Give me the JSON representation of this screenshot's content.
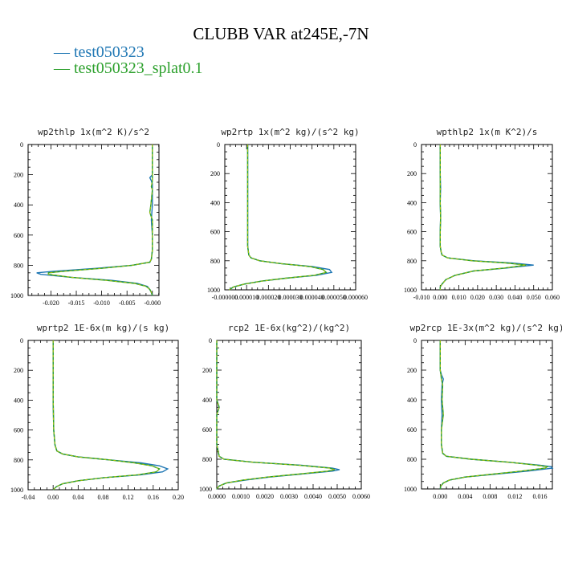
{
  "title": "CLUBB VAR at245E,-7N",
  "legend": [
    {
      "name": "test050323",
      "color": "#1f77b4"
    },
    {
      "name": "test050323_splat0.1",
      "color": "#2ca02c"
    }
  ],
  "chart_data": [
    {
      "type": "line",
      "title": "wp2thlp   1x(m^2 K)/s^2",
      "xlim": [
        -0.0245,
        0.0013
      ],
      "ylim": [
        1000,
        0
      ],
      "xticks": [
        -0.02,
        -0.015,
        -0.01,
        -0.005,
        0.0
      ],
      "xtick_labels": [
        "-0.020",
        "-0.015",
        "-0.010",
        "-0.005",
        "-0.000"
      ],
      "yticks": [
        0,
        200,
        400,
        600,
        800,
        1000
      ],
      "ytick_labels": [
        "0",
        "200",
        "400",
        "600",
        "800",
        "1000"
      ],
      "series": [
        {
          "name": "test050323",
          "y": [
            0,
            200,
            220,
            240,
            260,
            300,
            400,
            500,
            600,
            700,
            760,
            780,
            800,
            820,
            840,
            850,
            860,
            880,
            900,
            920,
            940,
            960,
            980,
            1000
          ],
          "x": [
            0,
            0,
            -0.0005,
            -0.0002,
            0,
            0,
            0,
            -0.0002,
            0,
            0,
            -0.0002,
            -0.0005,
            -0.004,
            -0.011,
            -0.0195,
            -0.0228,
            -0.022,
            -0.016,
            -0.008,
            -0.003,
            -0.001,
            -0.0005,
            -0.0002,
            0
          ]
        },
        {
          "name": "test050323_splat0.1",
          "y": [
            0,
            200,
            240,
            280,
            300,
            400,
            450,
            500,
            600,
            700,
            760,
            780,
            800,
            820,
            840,
            850,
            860,
            880,
            900,
            920,
            940,
            960,
            980,
            1000
          ],
          "x": [
            0,
            0,
            0,
            -0.0002,
            0,
            -0.0003,
            -0.0005,
            0,
            0,
            0,
            -0.0002,
            -0.0005,
            -0.004,
            -0.01,
            -0.0175,
            -0.0205,
            -0.0205,
            -0.016,
            -0.009,
            -0.0035,
            -0.0012,
            -0.0005,
            -0.0002,
            0
          ]
        }
      ]
    },
    {
      "type": "line",
      "title": "wp2rtp   1x(m^2 kg)/(s^2 kg)",
      "xlim": [
        0.0,
        6e-05
      ],
      "ylim": [
        1000,
        0
      ],
      "xticks": [
        0.0,
        1e-05,
        2e-05,
        3e-05,
        4e-05,
        5e-05,
        6e-05
      ],
      "xtick_labels": [
        "-0.000000",
        "0.000010",
        "0.000020",
        "0.000030",
        "0.000040",
        "0.000050",
        "0.000060"
      ],
      "yticks": [
        0,
        200,
        400,
        600,
        800,
        1000
      ],
      "ytick_labels": [
        "0",
        "200",
        "400",
        "600",
        "800",
        "1000"
      ],
      "series": [
        {
          "name": "test050323",
          "y": [
            0,
            200,
            400,
            600,
            700,
            760,
            780,
            800,
            820,
            840,
            860,
            880,
            900,
            920,
            940,
            960,
            980,
            1000
          ],
          "x": [
            1.05e-05,
            1.05e-05,
            1.05e-05,
            1.05e-05,
            1.05e-05,
            1.1e-05,
            1.2e-05,
            1.6e-05,
            2.6e-05,
            4e-05,
            4.8e-05,
            4.9e-05,
            4.2e-05,
            2.8e-05,
            1.7e-05,
            9e-06,
            4e-06,
            2e-06
          ]
        },
        {
          "name": "test050323_splat0.1",
          "y": [
            0,
            200,
            400,
            600,
            700,
            760,
            780,
            800,
            820,
            840,
            860,
            880,
            900,
            920,
            940,
            960,
            980,
            1000
          ],
          "x": [
            1.05e-05,
            1.05e-05,
            1.05e-05,
            1.05e-05,
            1.05e-05,
            1.1e-05,
            1.2e-05,
            1.6e-05,
            2.6e-05,
            3.9e-05,
            4.5e-05,
            4.65e-05,
            4.1e-05,
            2.8e-05,
            1.7e-05,
            9e-06,
            4e-06,
            2e-06
          ]
        }
      ]
    },
    {
      "type": "line",
      "title": "wpthlp2   1x(m K^2)/s",
      "xlim": [
        -0.01,
        0.06
      ],
      "ylim": [
        1000,
        0
      ],
      "xticks": [
        -0.01,
        0.0,
        0.01,
        0.02,
        0.03,
        0.04,
        0.05,
        0.06
      ],
      "xtick_labels": [
        "-0.010",
        "0.000",
        "0.010",
        "0.020",
        "0.030",
        "0.040",
        "0.050",
        "0.060"
      ],
      "yticks": [
        0,
        200,
        400,
        600,
        800,
        1000
      ],
      "ytick_labels": [
        "0",
        "200",
        "400",
        "600",
        "800",
        "1000"
      ],
      "series": [
        {
          "name": "test050323",
          "y": [
            0,
            200,
            300,
            400,
            500,
            600,
            700,
            740,
            760,
            780,
            800,
            815,
            830,
            850,
            870,
            900,
            930,
            960,
            980,
            1000
          ],
          "x": [
            0,
            0,
            0.0002,
            0,
            0.0002,
            0,
            0,
            0.0005,
            0.001,
            0.004,
            0.018,
            0.038,
            0.05,
            0.035,
            0.018,
            0.008,
            0.003,
            0.001,
            0,
            0
          ]
        },
        {
          "name": "test050323_splat0.1",
          "y": [
            0,
            200,
            300,
            400,
            500,
            600,
            700,
            740,
            760,
            780,
            800,
            815,
            830,
            850,
            870,
            900,
            930,
            960,
            980,
            1000
          ],
          "x": [
            0,
            0,
            0,
            0,
            0.0002,
            0,
            0,
            0.0005,
            0.001,
            0.004,
            0.017,
            0.035,
            0.046,
            0.034,
            0.018,
            0.008,
            0.003,
            0.001,
            0,
            0
          ]
        }
      ]
    },
    {
      "type": "line",
      "title": "wprtp2   1E-6x(m kg)/(s kg)",
      "xlim": [
        -0.04,
        0.2
      ],
      "ylim": [
        1000,
        0
      ],
      "xticks": [
        -0.04,
        0.0,
        0.04,
        0.08,
        0.12,
        0.16,
        0.2
      ],
      "xtick_labels": [
        "-0.04",
        "0.00",
        "0.04",
        "0.08",
        "0.12",
        "0.16",
        "0.20"
      ],
      "yticks": [
        0,
        200,
        400,
        600,
        800,
        1000
      ],
      "ytick_labels": [
        "0",
        "200",
        "400",
        "600",
        "800",
        "1000"
      ],
      "series": [
        {
          "name": "test050323",
          "y": [
            0,
            200,
            400,
            600,
            700,
            740,
            760,
            780,
            800,
            820,
            840,
            860,
            880,
            900,
            920,
            940,
            960,
            980,
            1000
          ],
          "x": [
            0,
            0,
            0,
            0.001,
            0.003,
            0.006,
            0.015,
            0.04,
            0.09,
            0.14,
            0.17,
            0.183,
            0.175,
            0.14,
            0.08,
            0.04,
            0.015,
            0.005,
            0
          ]
        },
        {
          "name": "test050323_splat0.1",
          "y": [
            0,
            200,
            400,
            600,
            700,
            740,
            760,
            780,
            800,
            820,
            840,
            860,
            880,
            900,
            920,
            940,
            960,
            980,
            1000
          ],
          "x": [
            0,
            0,
            0,
            0.001,
            0.003,
            0.006,
            0.015,
            0.04,
            0.09,
            0.13,
            0.158,
            0.17,
            0.165,
            0.135,
            0.08,
            0.04,
            0.015,
            0.005,
            0
          ]
        }
      ]
    },
    {
      "type": "line",
      "title": "rcp2   1E-6x(kg^2)/(kg^2)",
      "xlim": [
        0.0,
        0.006
      ],
      "ylim": [
        1000,
        0
      ],
      "xticks": [
        0.0,
        0.001,
        0.002,
        0.003,
        0.004,
        0.005,
        0.006
      ],
      "xtick_labels": [
        "0.0000",
        "0.0010",
        "0.0020",
        "0.0030",
        "0.0040",
        "0.0050",
        "0.0060"
      ],
      "yticks": [
        0,
        200,
        400,
        600,
        800,
        1000
      ],
      "ytick_labels": [
        "0",
        "200",
        "400",
        "600",
        "800",
        "1000"
      ],
      "series": [
        {
          "name": "test050323",
          "y": [
            0,
            200,
            400,
            450,
            500,
            600,
            700,
            780,
            800,
            820,
            840,
            860,
            870,
            880,
            900,
            920,
            940,
            960,
            980,
            1000
          ],
          "x": [
            0,
            0,
            0,
            0.0001,
            0,
            0,
            0,
            0.0001,
            0.0003,
            0.0015,
            0.0035,
            0.0048,
            0.0051,
            0.0048,
            0.0035,
            0.0022,
            0.0012,
            0.0004,
            0.0001,
            0
          ]
        },
        {
          "name": "test050323_splat0.1",
          "y": [
            0,
            200,
            400,
            450,
            500,
            600,
            700,
            780,
            800,
            820,
            840,
            860,
            870,
            880,
            900,
            920,
            940,
            960,
            980,
            1000
          ],
          "x": [
            0,
            0,
            0,
            0.0001,
            0,
            0,
            0,
            0.0001,
            0.0003,
            0.0015,
            0.0034,
            0.0047,
            0.0049,
            0.0046,
            0.0034,
            0.0021,
            0.0011,
            0.0004,
            0.0001,
            0
          ]
        }
      ]
    },
    {
      "type": "line",
      "title": "wp2rcp   1E-3x(m^2 kg)/(s^2 kg)",
      "xlim": [
        -0.003,
        0.018
      ],
      "ylim": [
        1000,
        0
      ],
      "xticks": [
        0.0,
        0.004,
        0.008,
        0.012,
        0.016
      ],
      "xtick_labels": [
        "0.000",
        "0.004",
        "0.008",
        "0.012",
        "0.016"
      ],
      "yticks": [
        0,
        200,
        400,
        600,
        800,
        1000
      ],
      "ytick_labels": [
        "0",
        "200",
        "400",
        "600",
        "800",
        "1000"
      ],
      "series": [
        {
          "name": "test050323",
          "y": [
            0,
            200,
            230,
            260,
            300,
            400,
            500,
            600,
            700,
            760,
            780,
            800,
            820,
            840,
            850,
            860,
            880,
            900,
            920,
            940,
            960,
            980,
            1000
          ],
          "x": [
            0,
            0,
            0.0002,
            0.0005,
            0.0003,
            0.0002,
            0.0003,
            0.0002,
            0.0002,
            0.0004,
            0.001,
            0.005,
            0.011,
            0.016,
            0.0178,
            0.018,
            0.014,
            0.009,
            0.004,
            0.0015,
            0.0005,
            0.0001,
            0
          ]
        },
        {
          "name": "test050323_splat0.1",
          "y": [
            0,
            200,
            230,
            260,
            300,
            400,
            500,
            600,
            700,
            760,
            780,
            800,
            820,
            840,
            850,
            860,
            880,
            900,
            920,
            940,
            960,
            980,
            1000
          ],
          "x": [
            0,
            0,
            0.0001,
            0.0002,
            0.0004,
            0.0003,
            0.0005,
            0.0002,
            0.0002,
            0.0004,
            0.001,
            0.005,
            0.011,
            0.0155,
            0.0172,
            0.0168,
            0.013,
            0.0085,
            0.004,
            0.0015,
            0.0005,
            0.0001,
            0
          ]
        }
      ]
    }
  ]
}
